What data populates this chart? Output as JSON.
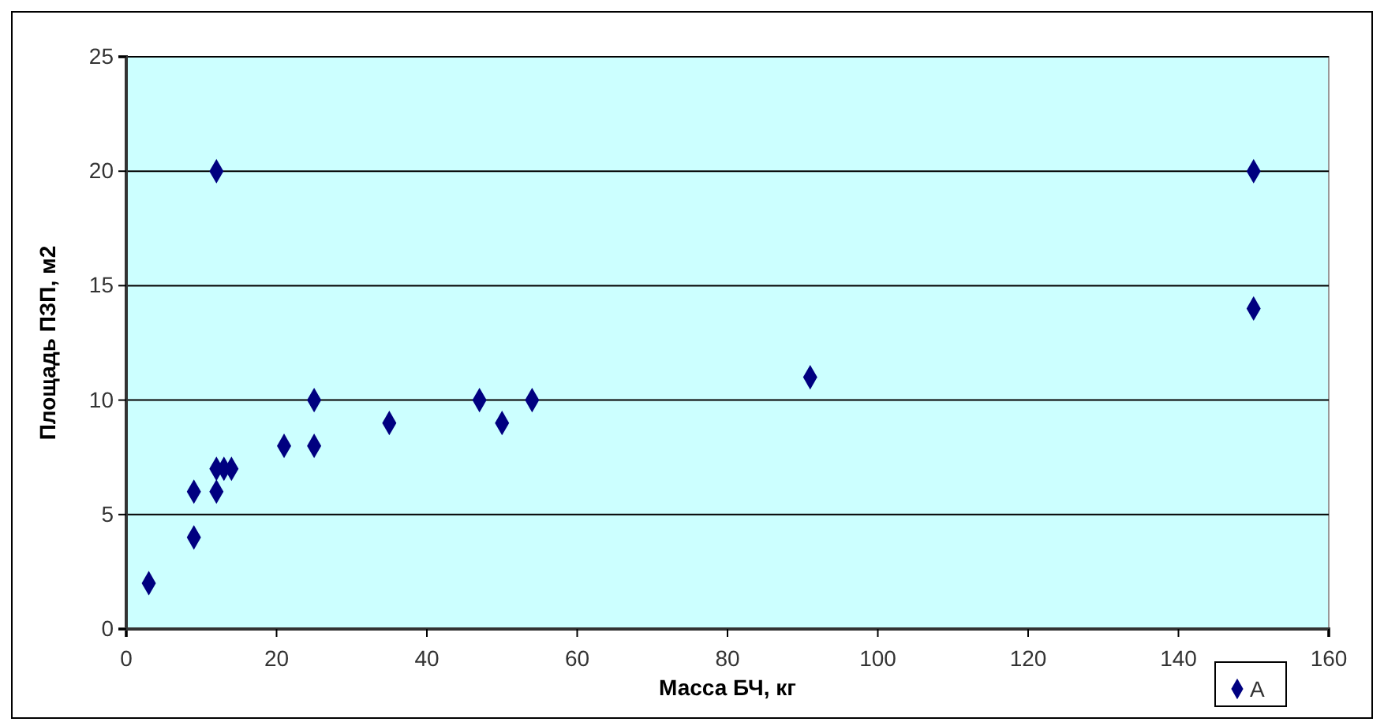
{
  "chart_data": {
    "type": "scatter",
    "xlabel": "Масса БЧ, кг",
    "ylabel": "Площадь ПЗП, м2",
    "x": [
      3,
      9,
      9,
      12,
      12,
      12,
      13,
      14,
      21,
      25,
      25,
      35,
      47,
      50,
      54,
      91,
      150,
      150
    ],
    "series": [
      {
        "name": "A",
        "color": "#000080",
        "values": [
          2,
          6,
          4,
          6,
          7,
          20,
          7,
          7,
          8,
          8,
          10,
          9,
          10,
          9,
          10,
          11,
          20,
          14
        ]
      }
    ],
    "xlim": [
      0,
      160
    ],
    "xticks": [
      0,
      20,
      40,
      60,
      80,
      100,
      120,
      140,
      160
    ],
    "ylim": [
      0,
      25
    ],
    "yticks": [
      0,
      5,
      10,
      15,
      20,
      25
    ],
    "grid": "y",
    "marker": "diamond",
    "legend": "bottom right"
  }
}
